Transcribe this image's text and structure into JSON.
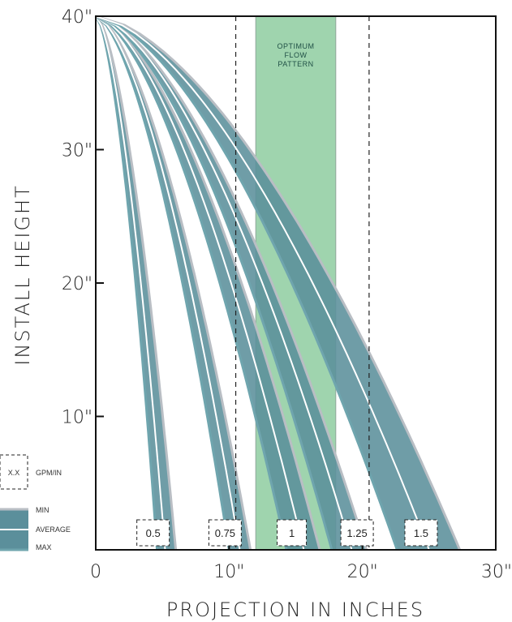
{
  "chart_data": {
    "type": "area",
    "xlabel": "PROJECTION IN INCHES",
    "ylabel": "INSTALL HEIGHT",
    "xlim": [
      0,
      30
    ],
    "ylim": [
      0,
      40
    ],
    "x_ticks": [
      "0",
      "10\"",
      "20\"",
      "30\""
    ],
    "y_ticks": [
      "10\"",
      "20\"",
      "30\"",
      "40\""
    ],
    "optimum_band": {
      "label_lines": [
        "OPTIMUM",
        "FLOW",
        "PATTERN"
      ],
      "x_range": [
        12,
        18
      ],
      "color": "#9fd4ae"
    },
    "reference_lines_x": [
      10.5,
      20.5
    ],
    "series": [
      {
        "name": "0.5",
        "min": 4.6,
        "average": 5.2,
        "max": 6.0
      },
      {
        "name": "0.75",
        "min": 10.0,
        "average": 10.8,
        "max": 11.6
      },
      {
        "name": "1",
        "min": 14.3,
        "average": 15.6,
        "max": 16.8
      },
      {
        "name": "1.25",
        "min": 17.7,
        "average": 19.2,
        "max": 20.3
      },
      {
        "name": "1.5",
        "min": 22.6,
        "average": 25.0,
        "max": 27.3
      }
    ],
    "legend": {
      "box_text": "X.X",
      "box_caption": "GPM/IN",
      "items": [
        "MIN",
        "AVERAGE",
        "MAX"
      ]
    },
    "colors": {
      "band_fill": "#5b8f9b",
      "band_edge": "#b9bec4",
      "band_inner": "#6fa5ae",
      "average_line": "#ffffff"
    }
  }
}
